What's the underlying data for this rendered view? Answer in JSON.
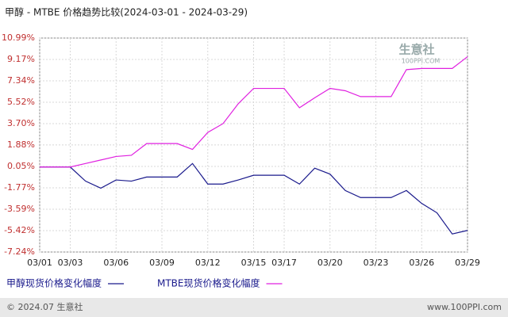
{
  "chart_data": {
    "type": "line",
    "title": "甲醇 - MTBE 价格趋势比较(2024-03-01 - 2024-03-29)",
    "categories": [
      "03/01",
      null,
      "03/03",
      null,
      null,
      "03/06",
      null,
      null,
      "03/09",
      null,
      null,
      "03/12",
      null,
      null,
      "03/15",
      null,
      "03/17",
      null,
      null,
      "03/20",
      null,
      null,
      "03/23",
      null,
      null,
      "03/26",
      null,
      null,
      "03/29"
    ],
    "series": [
      {
        "name": "甲醇现货价格变化幅度",
        "color": "#1a1a8c",
        "values": [
          0,
          0,
          0,
          -1.2,
          -1.8,
          -1.1,
          -1.2,
          -0.85,
          -0.85,
          -0.85,
          0.3,
          -1.45,
          -1.45,
          -1.1,
          -0.7,
          -0.7,
          -0.7,
          -1.45,
          -0.1,
          -0.6,
          -2.0,
          -2.6,
          -2.6,
          -2.6,
          -2.0,
          -3.1,
          -3.9,
          -5.7,
          -5.4
        ]
      },
      {
        "name": "MTBE现货价格变化幅度",
        "color": "#e020e0",
        "values": [
          0,
          0,
          0,
          0.3,
          0.6,
          0.9,
          1.0,
          2.0,
          2.0,
          2.0,
          1.5,
          2.95,
          3.7,
          5.4,
          6.7,
          6.7,
          6.7,
          5.05,
          5.9,
          6.7,
          6.5,
          6.0,
          6.0,
          6.0,
          8.3,
          8.4,
          8.4,
          8.4,
          9.4
        ]
      }
    ],
    "ylim": [
      -7.24,
      10.99
    ],
    "yticks": [
      {
        "value": 10.99,
        "label": "10.99%"
      },
      {
        "value": 9.17,
        "label": "9.17%"
      },
      {
        "value": 7.34,
        "label": "7.34%"
      },
      {
        "value": 5.52,
        "label": "5.52%"
      },
      {
        "value": 3.7,
        "label": "3.70%"
      },
      {
        "value": 1.88,
        "label": "1.88%"
      },
      {
        "value": 0.05,
        "label": "0.05%"
      },
      {
        "value": -1.77,
        "label": "-1.77%"
      },
      {
        "value": -3.59,
        "label": "-3.59%"
      },
      {
        "value": -5.42,
        "label": "-5.42%"
      },
      {
        "value": -7.24,
        "label": "-7.24%"
      }
    ],
    "grid": true,
    "watermark": "生意社",
    "watermark_url": "100PPI.COM",
    "footer_left": "© 2024.07 生意社",
    "footer_right": "www.100PPI.com"
  }
}
